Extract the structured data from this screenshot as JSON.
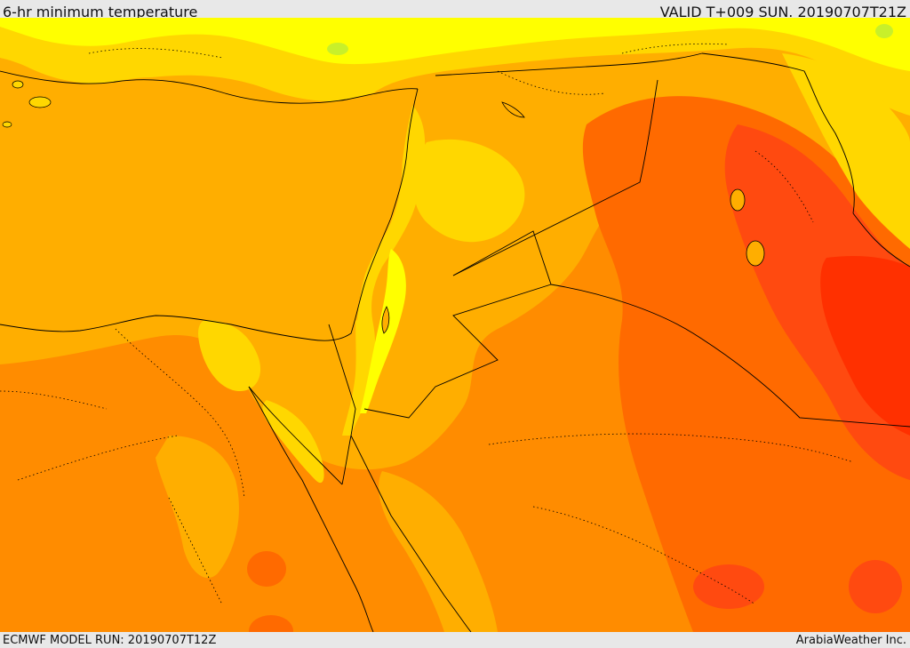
{
  "header": {
    "title": "6-hr minimum temperature",
    "valid": "VALID T+009 SUN. 20190707T21Z"
  },
  "footer": {
    "model_run": "ECMWF MODEL RUN: 20190707T12Z",
    "credit": "ArabiaWeather Inc."
  },
  "map": {
    "palette": {
      "light_green": "#c8f02a",
      "yellow": "#ffff00",
      "yellow_orange": "#ffd700",
      "light_orange": "#ffae00",
      "orange": "#ff8c00",
      "dark_orange": "#ff6a00",
      "red_orange": "#ff4a10",
      "red": "#ff3000"
    },
    "border_color": "#000000"
  }
}
